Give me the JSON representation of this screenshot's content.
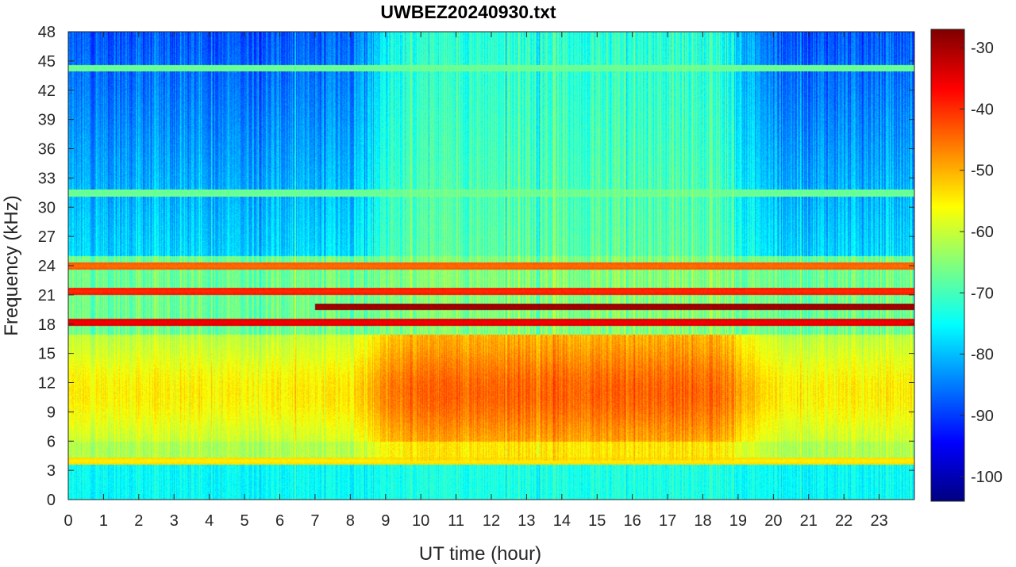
{
  "chart_data": {
    "type": "heatmap",
    "title": "UWBEZ20240930.txt",
    "xlabel": "UT time (hour)",
    "ylabel": "Frequency (kHz)",
    "xlim": [
      0,
      24
    ],
    "ylim": [
      0,
      48
    ],
    "xticks": [
      0,
      1,
      2,
      3,
      4,
      5,
      6,
      7,
      8,
      9,
      10,
      11,
      12,
      13,
      14,
      15,
      16,
      17,
      18,
      19,
      20,
      21,
      22,
      23
    ],
    "yticks": [
      0,
      3,
      6,
      9,
      12,
      15,
      18,
      21,
      24,
      27,
      30,
      33,
      36,
      39,
      42,
      45,
      48
    ],
    "colormap": "jet",
    "clim": [
      -104,
      -27
    ],
    "colorbar_ticks": [
      -30,
      -40,
      -50,
      -60,
      -70,
      -80,
      -90,
      -100
    ],
    "background_regions": [
      {
        "freq_range": [
          0,
          4
        ],
        "level_db": -74,
        "description_hours": [
          0,
          24
        ]
      },
      {
        "freq_range": [
          4,
          6
        ],
        "level_db": -60,
        "description_hours": [
          0,
          24
        ]
      },
      {
        "freq_range": [
          6,
          17
        ],
        "level_db": -57,
        "hours": [
          0,
          8
        ]
      },
      {
        "freq_range": [
          5,
          17
        ],
        "level_db": -47,
        "hours": [
          9,
          19
        ]
      },
      {
        "freq_range": [
          6,
          17
        ],
        "level_db": -55,
        "hours": [
          19,
          24
        ]
      },
      {
        "freq_range": [
          17,
          25
        ],
        "level_db": -68,
        "hours": [
          0,
          24
        ]
      },
      {
        "freq_range": [
          25,
          48
        ],
        "level_db": -88,
        "hours": [
          0,
          7
        ]
      },
      {
        "freq_range": [
          25,
          48
        ],
        "level_db": -74,
        "hours": [
          9,
          19
        ]
      },
      {
        "freq_range": [
          25,
          48
        ],
        "level_db": -88,
        "hours": [
          20,
          24
        ]
      }
    ],
    "lines": [
      {
        "freq_khz": 19.8,
        "hours": [
          7,
          24
        ],
        "level_db": -30
      },
      {
        "freq_khz": 18.2,
        "hours": [
          0,
          24
        ],
        "level_db": -36
      },
      {
        "freq_khz": 21.4,
        "hours": [
          0,
          24
        ],
        "level_db": -40
      },
      {
        "freq_khz": 24.0,
        "hours": [
          0,
          24
        ],
        "level_db": -45
      },
      {
        "freq_khz": 4.0,
        "hours": [
          0,
          24
        ],
        "level_db": -55
      },
      {
        "freq_khz": 44.3,
        "hours": [
          0,
          24
        ],
        "level_db": -68
      },
      {
        "freq_khz": 31.5,
        "hours": [
          0,
          24
        ],
        "level_db": -68
      }
    ]
  }
}
